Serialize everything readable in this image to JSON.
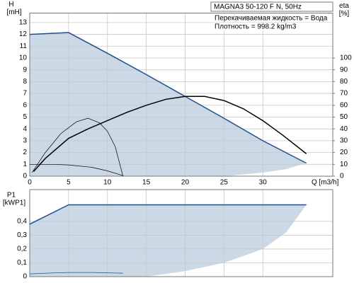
{
  "chart_data": [
    {
      "type": "line",
      "title": "MAGNA3 50-120 F N, 50Hz",
      "annotations": [
        "Перекачиваемая жидкость = Вода",
        "Плотность = 998.2 kg/m3"
      ],
      "ylabel": [
        "H",
        "[mH]"
      ],
      "y2label": [
        "eta",
        "[%]"
      ],
      "xlabel": "Q [m3/h]",
      "xlim": [
        0,
        39
      ],
      "xticks": [
        0,
        5,
        10,
        15,
        20,
        25,
        30
      ],
      "xtick_labels": true,
      "ylim": [
        0,
        13.8
      ],
      "yticks": [
        0,
        1,
        2,
        3,
        4,
        5,
        6,
        7,
        8,
        9,
        10,
        11,
        12,
        13
      ],
      "y2lim": [
        0,
        138
      ],
      "y2ticks": [
        0,
        10,
        20,
        30,
        40,
        50,
        60,
        70,
        80,
        90,
        100
      ],
      "grid": true,
      "area_color": "#cbd8e5",
      "area_lower": {
        "x": [
          0,
          25,
          30,
          33,
          35.6
        ],
        "values": [
          0,
          0,
          0.3,
          0.6,
          1.1
        ]
      },
      "series": [
        {
          "color": "#1f4e8c",
          "width": 1.5,
          "x": [
            0,
            5,
            10,
            15,
            20,
            25,
            30,
            35.6
          ],
          "values": [
            12,
            12.15,
            10.4,
            8.6,
            6.75,
            4.9,
            3.0,
            1.1
          ]
        },
        {
          "color": "#000000",
          "width": 1.5,
          "axis": "y2",
          "x": [
            0.5,
            2,
            5,
            7.5,
            10,
            12.5,
            15,
            17.5,
            20,
            22.5,
            25,
            27.5,
            30,
            32.5,
            35.6
          ],
          "values": [
            4,
            15,
            32,
            40,
            47,
            54,
            60,
            65,
            67.5,
            67.5,
            64,
            57,
            47,
            35,
            19
          ]
        },
        {
          "color": "#000000",
          "width": 0.7,
          "x": [
            0,
            3,
            5,
            8,
            10,
            12
          ],
          "values": [
            1,
            1,
            0.95,
            0.75,
            0.45,
            0.05
          ]
        },
        {
          "color": "#000000",
          "width": 0.7,
          "axis": "y2",
          "x": [
            0.3,
            2,
            4,
            6,
            7.5,
            9,
            10,
            11,
            12
          ],
          "values": [
            3,
            20,
            36,
            46,
            49,
            45,
            38,
            25,
            0
          ]
        }
      ]
    },
    {
      "type": "line",
      "ylabel": [
        "P1",
        "[kWP1]"
      ],
      "xlim": [
        0,
        39
      ],
      "xticks": [
        0,
        5,
        10,
        15,
        20,
        25,
        30
      ],
      "xtick_labels": false,
      "ylim": [
        0,
        0.63
      ],
      "yticks": [
        0,
        {
          "value": 0.1,
          "label": "0,1"
        },
        {
          "value": 0.2,
          "label": "0,2"
        },
        {
          "value": 0.3,
          "label": "0,3"
        },
        {
          "value": 0.4,
          "label": "0,4"
        }
      ],
      "grid": true,
      "area_color": "#cbd8e5",
      "area_lower": {
        "x": [
          0,
          15,
          20,
          25,
          30,
          33,
          35.6
        ],
        "values": [
          0,
          0,
          0.04,
          0.1,
          0.2,
          0.32,
          0.52
        ]
      },
      "series": [
        {
          "color": "#1f4e8c",
          "width": 1.5,
          "x": [
            0,
            5,
            35.6
          ],
          "values": [
            0.38,
            0.52,
            0.52
          ]
        },
        {
          "color": "#1f4e8c",
          "width": 0.8,
          "x": [
            0,
            3,
            5,
            8,
            12
          ],
          "values": [
            0.02,
            0.027,
            0.03,
            0.03,
            0.025
          ]
        }
      ]
    }
  ]
}
